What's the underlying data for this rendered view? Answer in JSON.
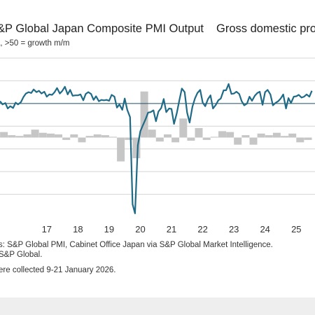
{
  "header": {
    "title_left": "&P Global Japan Composite PMI Output",
    "title_right": "Gross domestic pro",
    "subtitle": "a, >50 = growth m/m"
  },
  "footnotes": {
    "line1": "s: S&P Global PMI, Cabinet Office Japan via S&P Global Market Intelligence.",
    "line2": "S&P Global.",
    "line3": "ere collected 9-21 January 2026."
  },
  "colors": {
    "line": "#1f6a86",
    "bars": "#c6c6c6",
    "grid": "#d4d4d4",
    "baseline": "#1f4f63"
  },
  "chart_data": {
    "type": "bar+line",
    "x_tick_labels": [
      "17",
      "18",
      "19",
      "20",
      "21",
      "22",
      "23",
      "24",
      "25"
    ],
    "x_domain": [
      2016.0,
      2026.1
    ],
    "pmi_ylim": [
      25,
      60
    ],
    "pmi_baseline": 50,
    "gdp_ylim": [
      -10,
      10
    ],
    "series": [
      {
        "kind": "line",
        "x": [
          2016.0,
          2016.08,
          2016.17,
          2016.25,
          2016.33,
          2016.42,
          2016.5,
          2016.58,
          2016.67,
          2016.75,
          2016.83,
          2016.92,
          2017.0,
          2017.08,
          2017.17,
          2017.25,
          2017.33,
          2017.42,
          2017.5,
          2017.58,
          2017.67,
          2017.75,
          2017.83,
          2017.92,
          2018.0,
          2018.08,
          2018.17,
          2018.25,
          2018.33,
          2018.42,
          2018.5,
          2018.58,
          2018.67,
          2018.75,
          2018.83,
          2018.92,
          2019.0,
          2019.08,
          2019.17,
          2019.25,
          2019.33,
          2019.42,
          2019.5,
          2019.58,
          2019.67,
          2019.75,
          2019.83,
          2019.92,
          2020.0,
          2020.08,
          2020.17,
          2020.25,
          2020.33,
          2020.42,
          2020.5,
          2020.58,
          2020.67,
          2020.75,
          2020.83,
          2020.92,
          2021.0,
          2021.08,
          2021.17,
          2021.25,
          2021.33,
          2021.42,
          2021.5,
          2021.58,
          2021.67,
          2021.75,
          2021.83,
          2021.92,
          2022.0,
          2022.08,
          2022.17,
          2022.25,
          2022.33,
          2022.42,
          2022.5,
          2022.58,
          2022.67,
          2022.75,
          2022.83,
          2022.92,
          2023.0,
          2023.08,
          2023.17,
          2023.25,
          2023.33,
          2023.42,
          2023.5,
          2023.58,
          2023.67,
          2023.75,
          2023.83,
          2023.92,
          2024.0,
          2024.08,
          2024.17,
          2024.25,
          2024.33,
          2024.42,
          2024.5,
          2024.58,
          2024.67,
          2024.75,
          2024.83,
          2024.92,
          2025.0,
          2025.08,
          2025.17,
          2025.25,
          2025.33,
          2025.42,
          2025.5,
          2025.58,
          2025.67,
          2025.75,
          2025.83,
          2025.92,
          2026.0
        ],
        "values": [
          50.5,
          49.8,
          50.1,
          48.9,
          49.4,
          49.0,
          50.2,
          49.8,
          50.3,
          51.4,
          52.2,
          52.5,
          52.3,
          53.1,
          52.5,
          52.8,
          52.2,
          52.6,
          51.5,
          52.0,
          51.9,
          52.5,
          53.4,
          52.2,
          52.8,
          53.7,
          52.0,
          53.0,
          51.7,
          51.8,
          51.8,
          52.0,
          50.7,
          52.1,
          52.5,
          52.1,
          50.8,
          51.6,
          50.5,
          50.8,
          50.7,
          50.8,
          50.6,
          51.9,
          51.5,
          49.1,
          49.8,
          48.6,
          51.1,
          48.6,
          47.0,
          27.8,
          25.8,
          40.8,
          43.9,
          45.2,
          46.6,
          48.0,
          48.1,
          48.5,
          46.1,
          48.2,
          49.0,
          51.0,
          48.1,
          48.9,
          48.8,
          45.5,
          47.9,
          50.7,
          53.3,
          52.5,
          48.0,
          45.8,
          49.3,
          51.1,
          52.3,
          53.0,
          50.2,
          49.4,
          51.0,
          51.8,
          48.9,
          49.7,
          50.7,
          51.1,
          52.9,
          52.9,
          54.3,
          52.1,
          52.2,
          52.6,
          52.1,
          50.5,
          49.6,
          50.0,
          51.5,
          50.6,
          51.7,
          52.3,
          52.6,
          49.7,
          52.5,
          53.0,
          52.0,
          49.6,
          50.1,
          50.5,
          51.1,
          52.0,
          48.9,
          51.2,
          50.1,
          51.5,
          51.6,
          51.9,
          51.3,
          51.5,
          52.0,
          51.5,
          52.8
        ]
      },
      {
        "kind": "bar",
        "x": [
          2016.125,
          2016.375,
          2016.625,
          2016.875,
          2017.125,
          2017.375,
          2017.625,
          2017.875,
          2018.125,
          2018.375,
          2018.625,
          2018.875,
          2019.125,
          2019.375,
          2019.625,
          2019.875,
          2020.125,
          2020.375,
          2020.625,
          2020.875,
          2021.125,
          2021.375,
          2021.625,
          2021.875,
          2022.125,
          2022.375,
          2022.625,
          2022.875,
          2023.125,
          2023.375,
          2023.625,
          2023.875,
          2024.125,
          2024.375,
          2024.625,
          2024.875,
          2025.125,
          2025.375,
          2025.625,
          2025.875
        ],
        "values": [
          0.7,
          0.3,
          0.2,
          0.4,
          1.0,
          0.6,
          0.5,
          0.4,
          -0.3,
          0.4,
          -0.6,
          0.2,
          0.4,
          0.3,
          0.1,
          -3.0,
          -0.3,
          -2.6,
          5.8,
          1.0,
          -0.5,
          0.4,
          -0.6,
          2.4,
          -0.4,
          1.2,
          -0.3,
          0.1,
          0.8,
          0.7,
          -0.9,
          0.3,
          -0.9,
          0.5,
          0.3,
          0.6,
          0.2,
          0.5,
          -0.6,
          -0.3
        ]
      }
    ]
  }
}
